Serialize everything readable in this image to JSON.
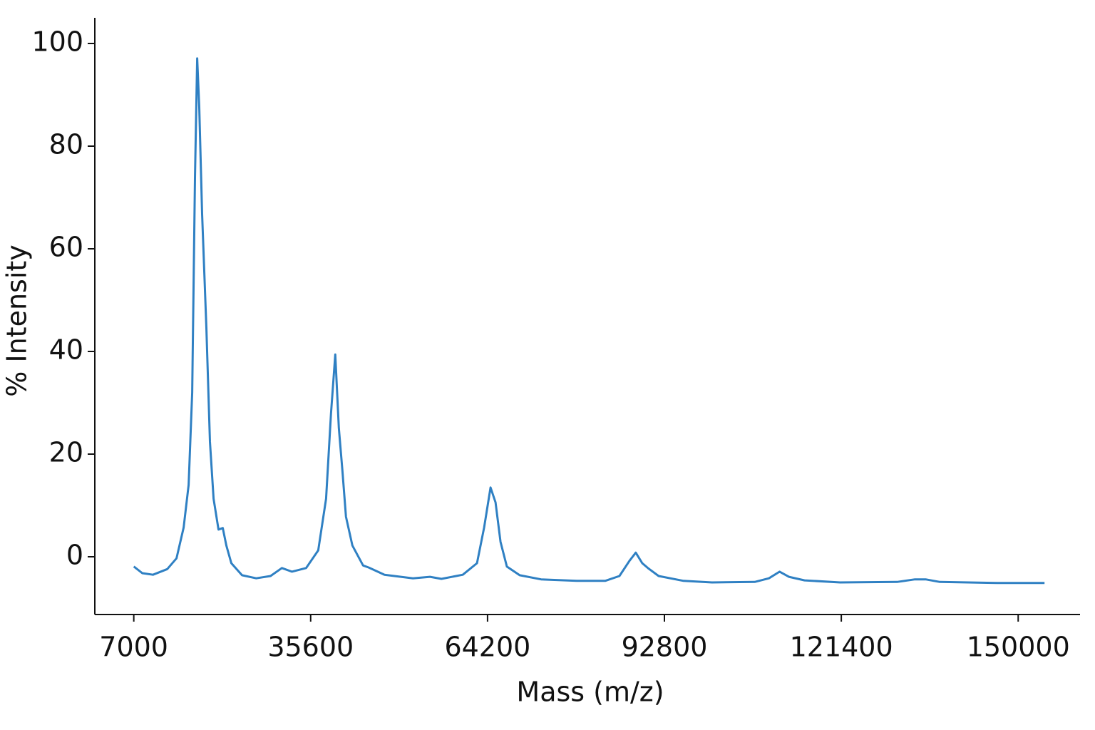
{
  "chart_data": {
    "type": "line",
    "x_label": "Mass (m/z)",
    "y_label": "% Intensity",
    "x": [
      7000,
      8380,
      10110,
      12410,
      13910,
      15060,
      15870,
      16440,
      16900,
      17250,
      17590,
      18050,
      18740,
      19320,
      19900,
      20700,
      21390,
      21970,
      22770,
      24500,
      26800,
      29110,
      30950,
      32560,
      34860,
      36820,
      38090,
      38890,
      39580,
      40160,
      40730,
      41310,
      42350,
      44070,
      45000,
      47530,
      52140,
      54900,
      56740,
      60200,
      62500,
      63650,
      64680,
      65490,
      66300,
      67330,
      69400,
      72860,
      78620,
      83220,
      85530,
      87140,
      88170,
      89210,
      90130,
      91860,
      95890,
      100490,
      107400,
      109700,
      111430,
      112930,
      115460,
      121210,
      130420,
      133300,
      135030,
      137330,
      146550,
      154260
    ],
    "series": [
      {
        "name": "% Intensity",
        "color": "#2f80c3",
        "values": [
          -1.9,
          -3.2,
          -3.5,
          -2.4,
          -0.3,
          5.7,
          14,
          32,
          73.8,
          97.1,
          87.6,
          66.8,
          44.6,
          22.4,
          11.3,
          5.3,
          5.6,
          2.2,
          -1.25,
          -3.6,
          -4.2,
          -3.75,
          -2.2,
          -2.9,
          -2.2,
          1.25,
          11.3,
          27.9,
          39.4,
          25.1,
          16.8,
          7.8,
          2.2,
          -1.7,
          -2.1,
          -3.5,
          -4.2,
          -3.9,
          -4.3,
          -3.5,
          -1.25,
          5.7,
          13.5,
          10.6,
          2.9,
          -1.9,
          -3.6,
          -4.4,
          -4.7,
          -4.7,
          -3.75,
          -0.8,
          0.8,
          -1.25,
          -2.2,
          -3.75,
          -4.7,
          -5,
          -4.9,
          -4.2,
          -2.9,
          -3.9,
          -4.6,
          -5,
          -4.9,
          -4.4,
          -4.4,
          -4.9,
          -5.1,
          -5.1
        ]
      }
    ],
    "xlim": [
      700,
      160000
    ],
    "xticks": [
      7000,
      35600,
      64200,
      92800,
      121400,
      150000
    ],
    "ylim": [
      -11.25,
      105
    ],
    "yticks": [
      0,
      20,
      40,
      60,
      80,
      100
    ],
    "grid": false
  }
}
